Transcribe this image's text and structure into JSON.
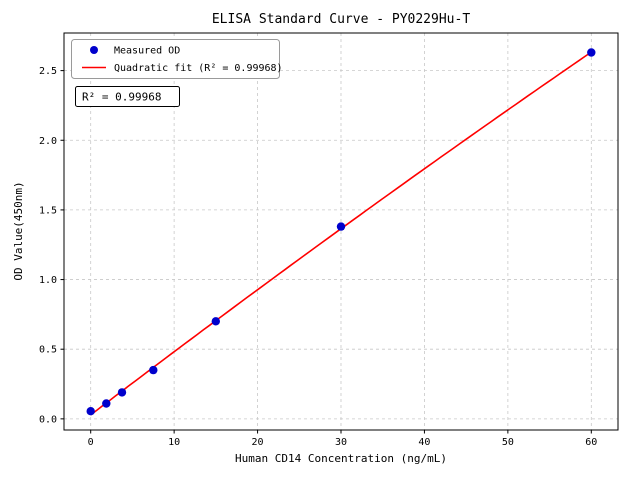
{
  "chart_data": {
    "type": "scatter",
    "title": "ELISA Standard Curve - PY0229Hu-T",
    "xlabel": "Human CD14 Concentration (ng/mL)",
    "ylabel": "OD Value(450nm)",
    "xlim": [
      -3.2,
      63.2
    ],
    "ylim": [
      -0.08,
      2.77
    ],
    "xticks": [
      0,
      10,
      20,
      30,
      40,
      50,
      60
    ],
    "yticks": [
      0.0,
      0.5,
      1.0,
      1.5,
      2.0,
      2.5
    ],
    "grid": true,
    "grid_style": "dashed",
    "legend_position": "upper-left",
    "series": [
      {
        "name": "Measured OD",
        "type": "scatter",
        "color": "#0000cc",
        "x": [
          0,
          1.875,
          3.75,
          7.5,
          15,
          30,
          60
        ],
        "y": [
          0.055,
          0.11,
          0.19,
          0.35,
          0.7,
          1.38,
          2.63
        ]
      },
      {
        "name": "Quadratic fit (R² = 0.99968)",
        "type": "line",
        "color": "#ff0000"
      }
    ],
    "annotation": "R² = 0.99968",
    "r_squared": 0.99968,
    "colors": {
      "grid": "#c8c8c8",
      "axis": "#000000",
      "background": "#ffffff"
    }
  }
}
